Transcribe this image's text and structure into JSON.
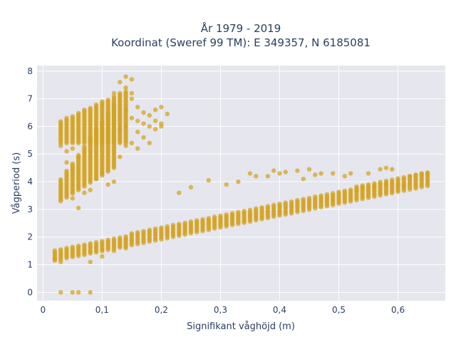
{
  "chart_data": {
    "type": "scatter",
    "title_line1": "År 1979 - 2019",
    "title_line2": "Koordinat (Sweref 99 TM): E 349357, N 6185081",
    "xlabel": "Signifikant våghöjd (m)",
    "ylabel": "Vågperiod (s)",
    "xlim": [
      -0.01,
      0.68
    ],
    "ylim": [
      -0.3,
      8.2
    ],
    "x_ticks": [
      0,
      0.1,
      0.2,
      0.3,
      0.4,
      0.5,
      0.6
    ],
    "x_tick_labels": [
      "0",
      "0,1",
      "0,2",
      "0,3",
      "0,4",
      "0,5",
      "0,6"
    ],
    "y_ticks": [
      0,
      1,
      2,
      3,
      4,
      5,
      6,
      7,
      8
    ],
    "y_tick_labels": [
      "0",
      "1",
      "2",
      "3",
      "4",
      "5",
      "6",
      "7",
      "8"
    ],
    "grid": true,
    "marker_color": "#d4a21c",
    "plot_background": "#e5e6ee",
    "series": [
      {
        "bands": [
          {
            "x_start": 0.02,
            "x_end": 0.65,
            "y_low_start": 1.15,
            "y_low_end": 3.85,
            "y_high_start": 1.55,
            "y_high_end": 4.35
          },
          {
            "x_start": 0.03,
            "x_end": 0.12,
            "y_low_start": 3.3,
            "y_low_end": 4.5,
            "y_high_start": 4.1,
            "y_high_end": 6.8
          },
          {
            "x_start": 0.03,
            "x_end": 0.14,
            "y_low_start": 5.4,
            "y_low_end": 5.4,
            "y_high_start": 6.2,
            "y_high_end": 7.3
          }
        ],
        "outliers": [
          [
            0.03,
            0.0
          ],
          [
            0.05,
            0.0
          ],
          [
            0.06,
            0.0
          ],
          [
            0.08,
            0.0
          ],
          [
            0.03,
            5.3
          ],
          [
            0.04,
            5.1
          ],
          [
            0.05,
            5.2
          ],
          [
            0.04,
            4.7
          ],
          [
            0.06,
            4.9
          ],
          [
            0.05,
            3.4
          ],
          [
            0.07,
            3.6
          ],
          [
            0.08,
            3.7
          ],
          [
            0.09,
            4.1
          ],
          [
            0.1,
            4.3
          ],
          [
            0.11,
            3.9
          ],
          [
            0.12,
            4.0
          ],
          [
            0.06,
            3.05
          ],
          [
            0.13,
            4.9
          ],
          [
            0.12,
            5.5
          ],
          [
            0.12,
            7.2
          ],
          [
            0.13,
            7.6
          ],
          [
            0.14,
            7.8
          ],
          [
            0.15,
            7.7
          ],
          [
            0.14,
            7.4
          ],
          [
            0.15,
            7.2
          ],
          [
            0.15,
            7.0
          ],
          [
            0.14,
            6.6
          ],
          [
            0.15,
            6.3
          ],
          [
            0.16,
            6.7
          ],
          [
            0.17,
            6.5
          ],
          [
            0.16,
            6.2
          ],
          [
            0.17,
            6.1
          ],
          [
            0.18,
            6.0
          ],
          [
            0.16,
            5.8
          ],
          [
            0.17,
            5.6
          ],
          [
            0.18,
            5.4
          ],
          [
            0.16,
            5.2
          ],
          [
            0.15,
            5.4
          ],
          [
            0.14,
            5.3
          ],
          [
            0.18,
            6.4
          ],
          [
            0.19,
            6.2
          ],
          [
            0.19,
            6.6
          ],
          [
            0.2,
            6.7
          ],
          [
            0.21,
            6.45
          ],
          [
            0.2,
            6.1
          ],
          [
            0.2,
            6.0
          ],
          [
            0.19,
            5.9
          ],
          [
            0.14,
            6.0
          ],
          [
            0.13,
            5.9
          ],
          [
            0.08,
            1.1
          ],
          [
            0.1,
            1.3
          ],
          [
            0.12,
            1.5
          ],
          [
            0.14,
            1.6
          ],
          [
            0.23,
            3.6
          ],
          [
            0.25,
            3.8
          ],
          [
            0.28,
            4.05
          ],
          [
            0.31,
            3.9
          ],
          [
            0.33,
            4.0
          ],
          [
            0.35,
            4.3
          ],
          [
            0.36,
            4.2
          ],
          [
            0.38,
            4.2
          ],
          [
            0.39,
            4.4
          ],
          [
            0.4,
            4.3
          ],
          [
            0.41,
            4.35
          ],
          [
            0.43,
            4.4
          ],
          [
            0.44,
            4.1
          ],
          [
            0.45,
            4.45
          ],
          [
            0.46,
            4.25
          ],
          [
            0.47,
            4.3
          ],
          [
            0.49,
            4.3
          ],
          [
            0.51,
            4.2
          ],
          [
            0.52,
            4.3
          ],
          [
            0.55,
            4.3
          ],
          [
            0.57,
            4.45
          ],
          [
            0.58,
            4.5
          ],
          [
            0.59,
            4.45
          ],
          [
            0.53,
            3.7
          ],
          [
            0.54,
            3.8
          ],
          [
            0.56,
            3.8
          ],
          [
            0.58,
            3.9
          ],
          [
            0.6,
            3.9
          ],
          [
            0.61,
            3.85
          ],
          [
            0.62,
            4.2
          ],
          [
            0.63,
            4.25
          ],
          [
            0.64,
            4.3
          ],
          [
            0.65,
            4.3
          ],
          [
            0.02,
            1.2
          ],
          [
            0.03,
            1.1
          ]
        ]
      }
    ]
  }
}
